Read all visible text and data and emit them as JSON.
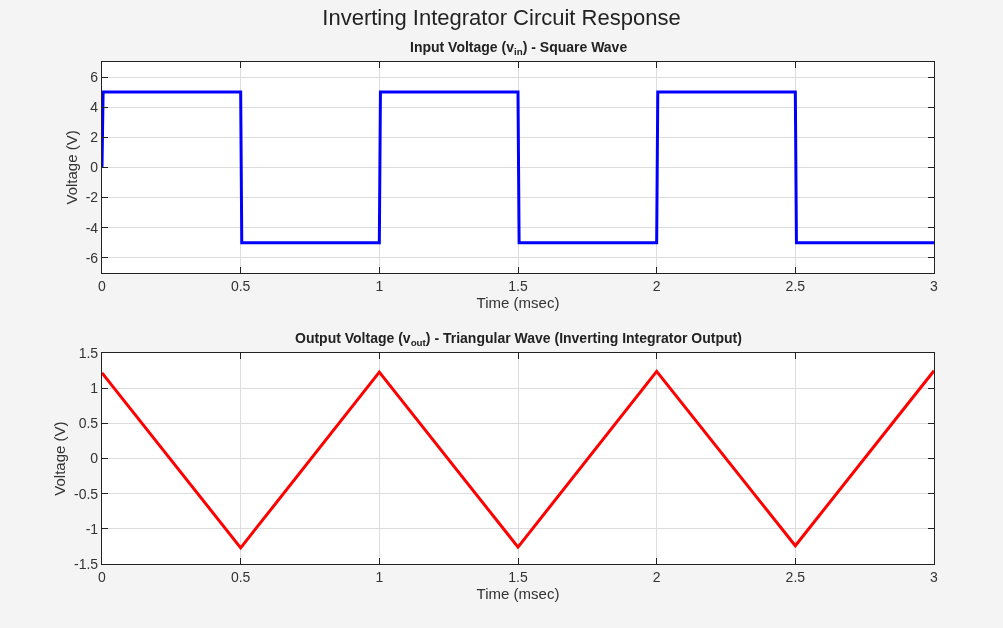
{
  "chart_data": [
    {
      "type": "line",
      "title": "Inverting Integrator Circuit Response",
      "subtitle": "Input Voltage (v$_{in}$) - Square Wave",
      "xlabel": "Time (msec)",
      "ylabel": "Voltage (V)",
      "x": [
        0,
        0.004,
        0.5,
        0.504,
        1,
        1.004,
        1.5,
        1.504,
        2,
        2.004,
        2.5,
        2.504,
        3
      ],
      "series": [
        {
          "color": "#0000ff",
          "values": [
            0,
            5,
            5,
            -5,
            -5,
            5,
            5,
            -5,
            -5,
            5,
            5,
            -5,
            -5
          ]
        }
      ],
      "xlim": [
        0,
        3
      ],
      "xticks": [
        0,
        0.5,
        1,
        1.5,
        2,
        2.5,
        3
      ],
      "ylim": [
        -7,
        7
      ],
      "yticks": [
        -6,
        -4,
        -2,
        0,
        2,
        4,
        6
      ],
      "grid": true,
      "marker": "none",
      "line_style": "solid"
    },
    {
      "type": "line",
      "subtitle": "Output Voltage (v$_{out}$) - Triangular Wave (Inverting Integrator Output)",
      "xlabel": "Time (msec)",
      "ylabel": "Voltage (V)",
      "x": [
        0,
        0.5,
        1,
        1.5,
        2,
        2.5,
        3
      ],
      "series": [
        {
          "color": "#ff0000",
          "values": [
            1.22,
            -1.27,
            1.23,
            -1.26,
            1.24,
            -1.24,
            1.25
          ]
        }
      ],
      "xlim": [
        0,
        3
      ],
      "xticks": [
        0,
        0.5,
        1,
        1.5,
        2,
        2.5,
        3
      ],
      "ylim": [
        -1.5,
        1.5
      ],
      "yticks": [
        -1.5,
        -1,
        -0.5,
        0,
        0.5,
        1,
        1.5
      ],
      "grid": true,
      "marker": "none",
      "line_style": "solid"
    }
  ]
}
